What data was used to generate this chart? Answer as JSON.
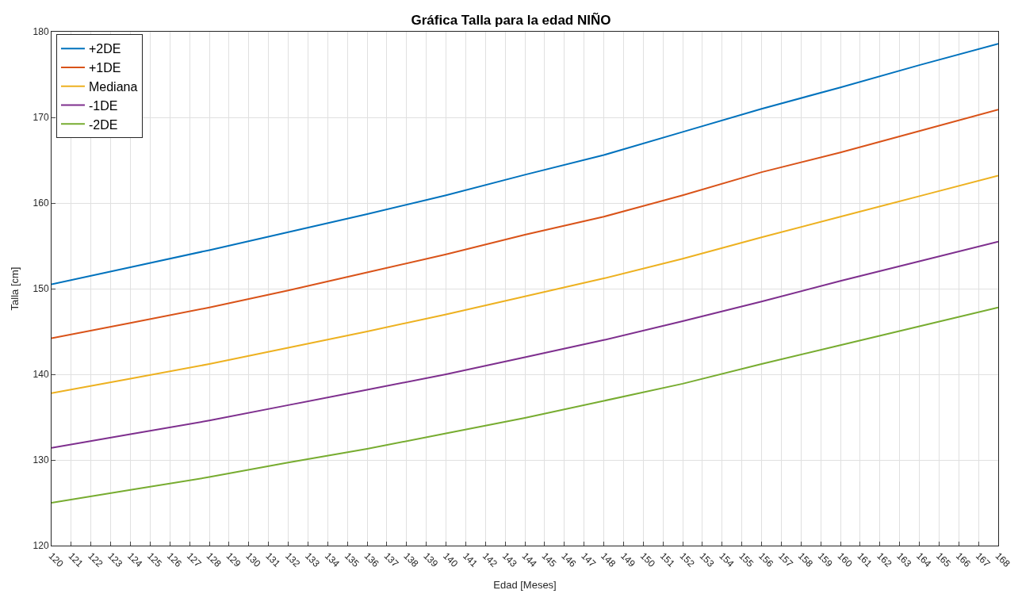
{
  "chart_data": {
    "type": "line",
    "title": "Gráfica Talla para la edad NIÑO",
    "xlabel": "Edad [Meses]",
    "ylabel": "Talla [cm]",
    "x": [
      120,
      124,
      128,
      132,
      136,
      140,
      144,
      148,
      152,
      156,
      160,
      164,
      168
    ],
    "series": [
      {
        "name": "+2DE",
        "color": "#0072bd",
        "values": [
          150.5,
          152.5,
          154.5,
          156.6,
          158.7,
          160.9,
          163.3,
          165.6,
          168.3,
          171.0,
          173.5,
          176.1,
          178.6
        ]
      },
      {
        "name": "+1DE",
        "color": "#d95319",
        "values": [
          144.2,
          146.0,
          147.8,
          149.8,
          151.9,
          154.0,
          156.3,
          158.4,
          160.9,
          163.6,
          165.9,
          168.4,
          170.9
        ]
      },
      {
        "name": "Mediana",
        "color": "#edb120",
        "values": [
          137.8,
          139.5,
          141.2,
          143.1,
          145.0,
          147.0,
          149.1,
          151.2,
          153.5,
          156.0,
          158.4,
          160.8,
          163.2
        ]
      },
      {
        "name": "-1DE",
        "color": "#7e2f8e",
        "values": [
          131.4,
          133.0,
          134.6,
          136.4,
          138.2,
          140.0,
          142.0,
          144.0,
          146.2,
          148.5,
          150.9,
          153.2,
          155.5
        ]
      },
      {
        "name": "-2DE",
        "color": "#77ac30",
        "values": [
          125.0,
          126.5,
          128.0,
          129.7,
          131.3,
          133.1,
          134.9,
          136.9,
          138.9,
          141.2,
          143.4,
          145.6,
          147.8
        ]
      }
    ],
    "xlim": [
      120,
      168
    ],
    "xticks": [
      120,
      121,
      122,
      123,
      124,
      125,
      126,
      127,
      128,
      129,
      130,
      131,
      132,
      133,
      134,
      135,
      136,
      137,
      138,
      139,
      140,
      141,
      142,
      143,
      144,
      145,
      146,
      147,
      148,
      149,
      150,
      151,
      152,
      153,
      154,
      155,
      156,
      157,
      158,
      159,
      160,
      161,
      162,
      163,
      164,
      165,
      166,
      167,
      168
    ],
    "ylim": [
      120,
      180
    ],
    "yticks": [
      120,
      130,
      140,
      150,
      160,
      170,
      180
    ],
    "grid": true,
    "legend": "top left",
    "marker": "none",
    "line_style": "solid"
  }
}
